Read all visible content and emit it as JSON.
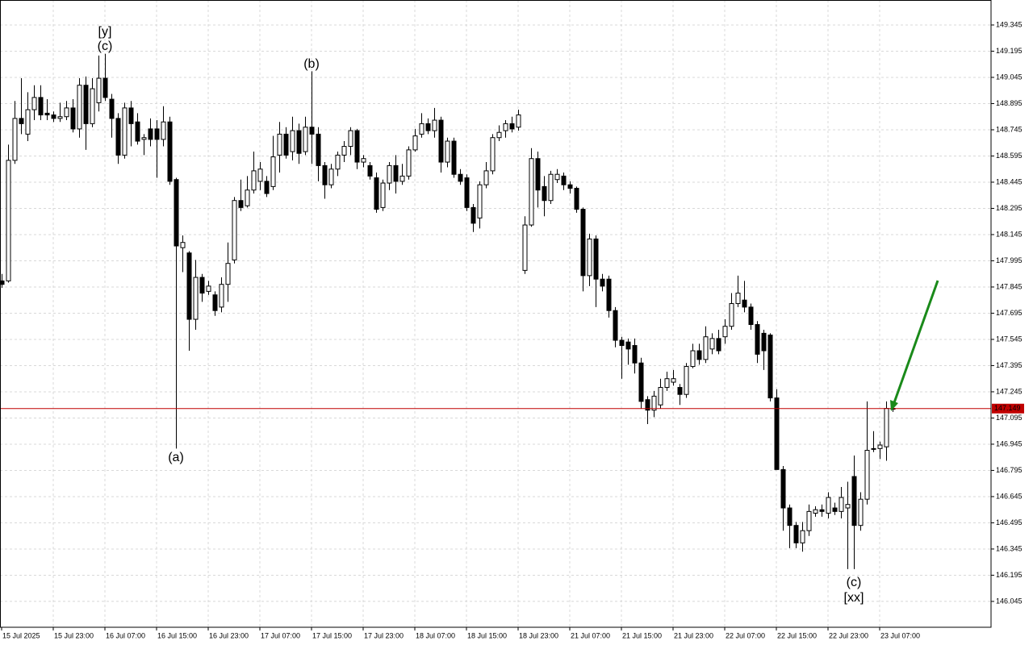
{
  "chart_data": {
    "type": "candlestick",
    "categories": [
      "15 Jul 2025",
      null,
      null,
      null,
      null,
      null,
      null,
      null,
      "15 Jul 23:00",
      null,
      null,
      null,
      null,
      null,
      null,
      null,
      "16 Jul 07:00",
      null,
      null,
      null,
      null,
      null,
      null,
      null,
      "16 Jul 15:00",
      null,
      null,
      null,
      null,
      null,
      null,
      null,
      "16 Jul 23:00",
      null,
      null,
      null,
      null,
      null,
      null,
      null,
      "17 Jul 07:00",
      null,
      null,
      null,
      null,
      null,
      null,
      null,
      "17 Jul 15:00",
      null,
      null,
      null,
      null,
      null,
      null,
      null,
      "17 Jul 23:00",
      null,
      null,
      null,
      null,
      null,
      null,
      null,
      "18 Jul 07:00",
      null,
      null,
      null,
      null,
      null,
      null,
      null,
      "18 Jul 15:00",
      null,
      null,
      null,
      null,
      null,
      null,
      null,
      "18 Jul 23:00",
      null,
      null,
      null,
      null,
      null,
      null,
      null,
      "21 Jul 07:00",
      null,
      null,
      null,
      null,
      null,
      null,
      null,
      "21 Jul 15:00",
      null,
      null,
      null,
      null,
      null,
      null,
      null,
      "21 Jul 23:00",
      null,
      null,
      null,
      null,
      null,
      null,
      null,
      "22 Jul 07:00",
      null,
      null,
      null,
      null,
      null,
      null,
      null,
      "22 Jul 15:00",
      null,
      null,
      null,
      null,
      null,
      null,
      null,
      "22 Jul 23:00",
      null,
      null,
      null,
      null,
      null,
      null,
      null,
      "23 Jul 07:00",
      null,
      null
    ],
    "open": [
      147.88,
      147.88,
      148.57,
      148.81,
      148.72,
      148.86,
      148.93,
      148.84,
      148.83,
      148.81,
      148.82,
      148.87,
      148.75,
      149.0,
      148.78,
      148.9,
      149.04,
      148.92,
      148.81,
      148.6,
      148.87,
      148.79,
      148.69,
      148.75,
      148.75,
      148.69,
      148.79,
      148.46,
      148.07,
      148.04,
      147.66,
      147.9,
      147.82,
      147.8,
      147.73,
      147.86,
      148.0,
      148.34,
      148.31,
      148.4,
      148.45,
      148.45,
      148.42,
      148.6,
      148.72,
      148.62,
      148.74,
      148.62,
      148.76,
      148.72,
      148.54,
      148.43,
      148.52,
      148.6,
      148.65,
      148.74,
      148.56,
      148.54,
      148.47,
      148.3,
      148.44,
      148.54,
      148.45,
      148.48,
      148.63,
      148.72,
      148.78,
      148.74,
      148.8,
      148.56,
      148.68,
      148.49,
      148.47,
      148.3,
      148.24,
      148.43,
      148.51,
      148.7,
      148.74,
      148.78,
      148.76,
      147.94,
      148.2,
      148.58,
      148.42,
      148.34,
      148.46,
      148.48,
      148.43,
      148.41,
      148.29,
      147.91,
      148.12,
      147.89,
      147.89,
      147.71,
      147.54,
      147.53,
      147.51,
      147.41,
      147.2,
      147.14,
      147.17,
      147.27,
      147.3,
      147.27,
      147.23,
      147.39,
      147.48,
      147.43,
      147.49,
      147.55,
      147.56,
      147.62,
      147.75,
      147.77,
      147.73,
      147.63,
      147.58,
      147.57,
      147.21,
      146.8,
      146.58,
      146.48,
      146.38,
      146.45,
      146.55,
      146.57,
      146.55,
      146.58,
      146.56,
      146.58,
      146.76,
      146.48,
      146.63,
      146.92,
      146.92,
      146.93,
      147.15
    ],
    "high": [
      147.92,
      148.66,
      148.91,
      149.04,
      148.96,
      149.0,
      149.0,
      148.92,
      148.85,
      148.9,
      148.91,
      148.92,
      149.04,
      149.05,
      149.04,
      149.17,
      149.18,
      148.95,
      148.84,
      148.9,
      148.91,
      148.84,
      148.72,
      148.81,
      148.8,
      148.88,
      148.82,
      148.47,
      148.14,
      148.05,
      148.0,
      147.92,
      147.88,
      147.82,
      147.9,
      148.1,
      148.36,
      148.46,
      148.48,
      148.62,
      148.56,
      148.48,
      148.71,
      148.79,
      148.76,
      148.82,
      148.78,
      148.82,
      149.08,
      148.76,
      148.56,
      148.55,
      148.62,
      148.68,
      148.76,
      148.75,
      148.6,
      148.56,
      148.5,
      148.46,
      148.56,
      148.6,
      148.55,
      148.65,
      148.75,
      148.84,
      148.81,
      148.87,
      148.82,
      148.7,
      148.7,
      148.52,
      148.49,
      148.32,
      148.45,
      148.56,
      148.72,
      148.77,
      148.8,
      148.82,
      148.86,
      148.25,
      148.64,
      148.62,
      148.48,
      148.51,
      148.52,
      148.5,
      148.45,
      148.42,
      148.3,
      148.15,
      148.14,
      147.92,
      147.91,
      147.73,
      147.56,
      147.55,
      147.55,
      147.44,
      147.22,
      147.25,
      147.32,
      147.36,
      147.37,
      147.29,
      147.41,
      147.52,
      147.52,
      147.62,
      147.58,
      147.6,
      147.66,
      147.81,
      147.91,
      147.88,
      147.75,
      147.65,
      147.6,
      147.58,
      147.26,
      146.82,
      146.6,
      146.5,
      146.5,
      146.6,
      146.59,
      146.6,
      146.67,
      146.61,
      146.7,
      146.73,
      146.88,
      146.67,
      147.19,
      147.02,
      146.96,
      147.19,
      147.17
    ],
    "low": [
      147.84,
      147.87,
      148.55,
      148.72,
      148.68,
      148.8,
      148.8,
      148.8,
      148.79,
      148.79,
      148.8,
      148.73,
      148.7,
      148.63,
      148.76,
      148.85,
      148.91,
      148.7,
      148.55,
      148.58,
      148.65,
      148.66,
      148.6,
      148.65,
      148.47,
      148.65,
      148.43,
      146.92,
      147.93,
      147.48,
      147.6,
      147.76,
      147.8,
      147.68,
      147.7,
      147.76,
      147.98,
      148.28,
      148.3,
      148.38,
      148.4,
      148.36,
      148.4,
      148.5,
      148.58,
      148.57,
      148.55,
      148.6,
      148.55,
      148.45,
      148.35,
      148.41,
      148.48,
      148.56,
      148.6,
      148.52,
      148.53,
      148.46,
      148.27,
      148.28,
      148.4,
      148.38,
      148.43,
      148.46,
      148.62,
      148.7,
      148.72,
      148.7,
      148.5,
      148.53,
      148.47,
      148.43,
      148.28,
      148.16,
      148.18,
      148.41,
      148.49,
      148.68,
      148.7,
      148.73,
      148.74,
      147.92,
      148.19,
      148.3,
      148.25,
      148.32,
      148.44,
      148.4,
      148.38,
      148.27,
      147.82,
      147.85,
      147.73,
      147.82,
      147.67,
      147.5,
      147.32,
      147.4,
      147.35,
      147.15,
      147.06,
      147.1,
      147.15,
      147.25,
      147.28,
      147.17,
      147.21,
      147.38,
      147.4,
      147.41,
      147.46,
      147.46,
      147.52,
      147.6,
      147.73,
      147.7,
      147.6,
      147.41,
      147.37,
      147.19,
      146.8,
      146.45,
      146.35,
      146.35,
      146.33,
      146.42,
      146.53,
      146.53,
      146.52,
      146.54,
      146.52,
      146.23,
      146.23,
      146.45,
      146.6,
      146.9,
      146.86,
      146.85,
      147.13
    ],
    "close": [
      147.86,
      148.57,
      148.81,
      148.78,
      148.86,
      148.93,
      148.83,
      148.83,
      148.81,
      148.82,
      148.87,
      148.75,
      149.0,
      148.78,
      148.98,
      149.04,
      148.93,
      148.81,
      148.6,
      148.87,
      148.78,
      148.68,
      148.7,
      148.69,
      148.69,
      148.79,
      148.45,
      148.08,
      148.1,
      147.66,
      147.9,
      147.81,
      147.85,
      147.71,
      147.86,
      147.98,
      148.34,
      148.3,
      148.4,
      148.51,
      148.52,
      148.38,
      148.59,
      148.72,
      148.6,
      148.74,
      148.61,
      148.76,
      148.72,
      148.54,
      148.43,
      148.52,
      148.6,
      148.65,
      148.74,
      148.56,
      148.58,
      148.48,
      148.29,
      148.44,
      148.54,
      148.45,
      148.48,
      148.63,
      148.71,
      148.78,
      148.74,
      148.8,
      148.56,
      148.68,
      148.49,
      148.45,
      148.3,
      148.21,
      148.43,
      148.51,
      148.7,
      148.73,
      148.78,
      148.75,
      148.83,
      148.2,
      148.58,
      148.4,
      148.34,
      148.49,
      148.49,
      148.43,
      148.41,
      148.29,
      147.91,
      148.12,
      147.89,
      147.85,
      147.71,
      147.54,
      147.51,
      147.49,
      147.41,
      147.19,
      147.14,
      147.22,
      147.27,
      147.32,
      147.32,
      147.23,
      147.39,
      147.48,
      147.43,
      147.56,
      147.55,
      147.48,
      147.62,
      147.75,
      147.81,
      147.73,
      147.63,
      147.46,
      147.48,
      147.21,
      146.8,
      146.58,
      146.48,
      146.38,
      146.45,
      146.56,
      146.57,
      146.56,
      146.64,
      146.56,
      146.64,
      146.6,
      146.48,
      146.63,
      146.91,
      146.92,
      146.94,
      147.15,
      147.149
    ],
    "up_color": "#ffffff",
    "down_color": "#000000",
    "ylim": [
      145.897,
      149.488
    ],
    "yticks": [
      149.345,
      149.195,
      149.045,
      148.895,
      148.745,
      148.595,
      148.445,
      148.295,
      148.145,
      147.995,
      147.845,
      147.695,
      147.545,
      147.395,
      147.245,
      147.095,
      146.945,
      146.795,
      146.645,
      146.495,
      146.345,
      146.195,
      146.045
    ],
    "grid": true,
    "price_line": {
      "value": 147.149,
      "color": "#c00000"
    },
    "annotations": [
      {
        "text": "[y]",
        "color": "#33bb33"
      },
      {
        "text": "(c)",
        "color": "#2222dd"
      },
      {
        "text": "(b)",
        "color": "#2222dd"
      },
      {
        "text": "(a)",
        "color": "#2222dd"
      },
      {
        "text": "(c)",
        "color": "#2222dd"
      },
      {
        "text": "[xx]",
        "color": "#33bb33"
      }
    ]
  }
}
